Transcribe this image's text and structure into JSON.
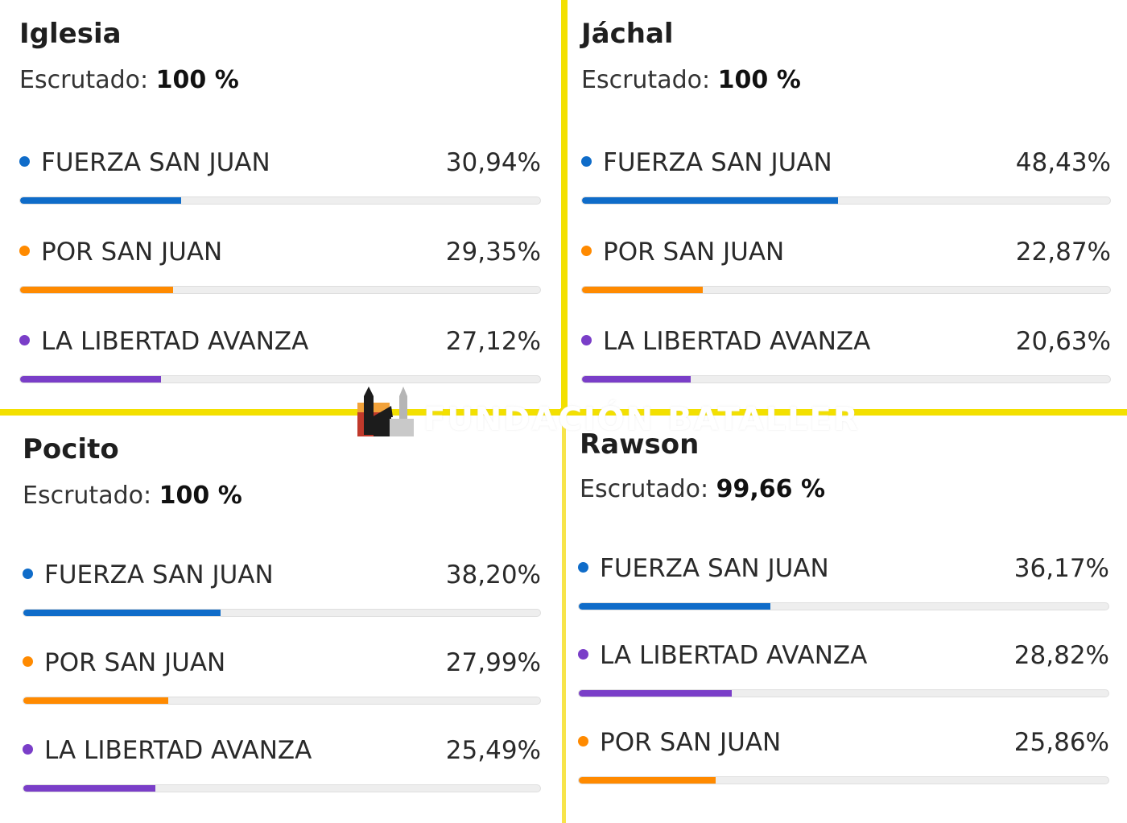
{
  "colors": {
    "fuerza": "#0f6cc9",
    "por": "#ff8a00",
    "libertad": "#7a3ec8",
    "divider": "#f3e000"
  },
  "chart_data": [
    {
      "type": "bar",
      "title": "Iglesia",
      "scrutinized_label": "Escrutado:",
      "scrutinized_value": "100 %",
      "series": [
        {
          "name": "FUERZA SAN JUAN",
          "value": 30.94,
          "value_label": "30,94%",
          "color": "fuerza"
        },
        {
          "name": "POR SAN JUAN",
          "value": 29.35,
          "value_label": "29,35%",
          "color": "por"
        },
        {
          "name": "LA LIBERTAD AVANZA",
          "value": 27.12,
          "value_label": "27,12%",
          "color": "libertad"
        }
      ]
    },
    {
      "type": "bar",
      "title": "Jáchal",
      "scrutinized_label": "Escrutado:",
      "scrutinized_value": "100 %",
      "series": [
        {
          "name": "FUERZA SAN JUAN",
          "value": 48.43,
          "value_label": "48,43%",
          "color": "fuerza"
        },
        {
          "name": "POR SAN JUAN",
          "value": 22.87,
          "value_label": "22,87%",
          "color": "por"
        },
        {
          "name": "LA LIBERTAD AVANZA",
          "value": 20.63,
          "value_label": "20,63%",
          "color": "libertad"
        }
      ]
    },
    {
      "type": "bar",
      "title": "Pocito",
      "scrutinized_label": "Escrutado:",
      "scrutinized_value": "100 %",
      "series": [
        {
          "name": "FUERZA SAN JUAN",
          "value": 38.2,
          "value_label": "38,20%",
          "color": "fuerza"
        },
        {
          "name": "POR SAN JUAN",
          "value": 27.99,
          "value_label": "27,99%",
          "color": "por"
        },
        {
          "name": "LA LIBERTAD AVANZA",
          "value": 25.49,
          "value_label": "25,49%",
          "color": "libertad"
        }
      ]
    },
    {
      "type": "bar",
      "title": "Rawson",
      "scrutinized_label": "Escrutado:",
      "scrutinized_value": "99,66 %",
      "series": [
        {
          "name": "FUERZA SAN JUAN",
          "value": 36.17,
          "value_label": "36,17%",
          "color": "fuerza"
        },
        {
          "name": "LA LIBERTAD AVANZA",
          "value": 28.82,
          "value_label": "28,82%",
          "color": "libertad"
        },
        {
          "name": "POR SAN JUAN",
          "value": 25.86,
          "value_label": "25,86%",
          "color": "por"
        }
      ]
    }
  ],
  "watermark": {
    "text": "FUNDACIÓN BATALLER",
    "icon": "church-logo-icon"
  }
}
